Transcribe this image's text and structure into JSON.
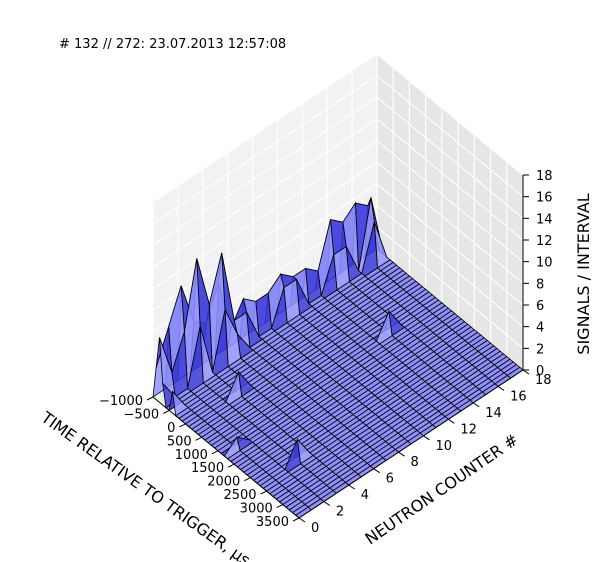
{
  "chart_data": {
    "type": "surface",
    "title": "# 132 // 272: 23.07.2013 12:57:08",
    "xlabel": "TIME RELATIVE TO TRIGGER, μs",
    "ylabel": "NEUTRON COUNTER #",
    "zlabel": "SIGNALS / INTERVAL",
    "xlim": [
      -1000,
      3500
    ],
    "ylim": [
      0,
      18
    ],
    "zlim": [
      0,
      18
    ],
    "x_ticks": [
      "−1000",
      "−500",
      "0",
      "500",
      "1000",
      "1500",
      "2000",
      "2500",
      "3000",
      "3500"
    ],
    "y_ticks": [
      "0",
      "2",
      "4",
      "6",
      "8",
      "10",
      "12",
      "14",
      "16",
      "18"
    ],
    "z_ticks": [
      "0",
      "2",
      "4",
      "6",
      "8",
      "10",
      "12",
      "14",
      "16",
      "18"
    ],
    "surface_color": "#8080ff",
    "edge_color": "#000000",
    "grid": true,
    "peaks": [
      {
        "x": -950,
        "y": 17,
        "z": 5
      },
      {
        "x": -850,
        "y": 17,
        "z": 6
      },
      {
        "x": -750,
        "y": 17,
        "z": 4
      },
      {
        "x": -950,
        "y": 16,
        "z": 6
      },
      {
        "x": -950,
        "y": 15,
        "z": 5
      },
      {
        "x": -850,
        "y": 15,
        "z": 3
      },
      {
        "x": -950,
        "y": 14,
        "z": 6
      },
      {
        "x": -850,
        "y": 14,
        "z": 3
      },
      {
        "x": -950,
        "y": 13,
        "z": 2
      },
      {
        "x": -950,
        "y": 12,
        "z": 3
      },
      {
        "x": -950,
        "y": 11,
        "z": 3
      },
      {
        "x": -850,
        "y": 11,
        "z": 3
      },
      {
        "x": -950,
        "y": 10,
        "z": 4
      },
      {
        "x": -850,
        "y": 10,
        "z": 3
      },
      {
        "x": -950,
        "y": 9,
        "z": 3
      },
      {
        "x": -950,
        "y": 8,
        "z": 3
      },
      {
        "x": -950,
        "y": 7,
        "z": 4
      },
      {
        "x": -850,
        "y": 7,
        "z": 3
      },
      {
        "x": -950,
        "y": 6,
        "z": 2
      },
      {
        "x": -850,
        "y": 6,
        "z": 3
      },
      {
        "x": -750,
        "y": 6,
        "z": 2
      },
      {
        "x": -950,
        "y": 5,
        "z": 7
      },
      {
        "x": -850,
        "y": 5,
        "z": 10
      },
      {
        "x": -750,
        "y": 5,
        "z": 5
      },
      {
        "x": -950,
        "y": 4,
        "z": 4
      },
      {
        "x": -850,
        "y": 4,
        "z": 6
      },
      {
        "x": -950,
        "y": 3,
        "z": 5
      },
      {
        "x": -850,
        "y": 3,
        "z": 11
      },
      {
        "x": -750,
        "y": 3,
        "z": 5
      },
      {
        "x": -950,
        "y": 2,
        "z": 9
      },
      {
        "x": -850,
        "y": 2,
        "z": 5
      },
      {
        "x": -950,
        "y": 1,
        "z": 6
      },
      {
        "x": -850,
        "y": 1,
        "z": 2
      },
      {
        "x": -950,
        "y": 0,
        "z": 3
      },
      {
        "x": -850,
        "y": 0,
        "z": 6
      },
      {
        "x": -750,
        "y": 0,
        "z": 2
      },
      {
        "x": -450,
        "y": 0,
        "z": 2
      },
      {
        "x": 50,
        "y": 4,
        "z": 2
      },
      {
        "x": 1150,
        "y": 1,
        "z": 1
      },
      {
        "x": 850,
        "y": 14,
        "z": 2
      },
      {
        "x": 2250,
        "y": 3,
        "z": 2
      }
    ]
  }
}
